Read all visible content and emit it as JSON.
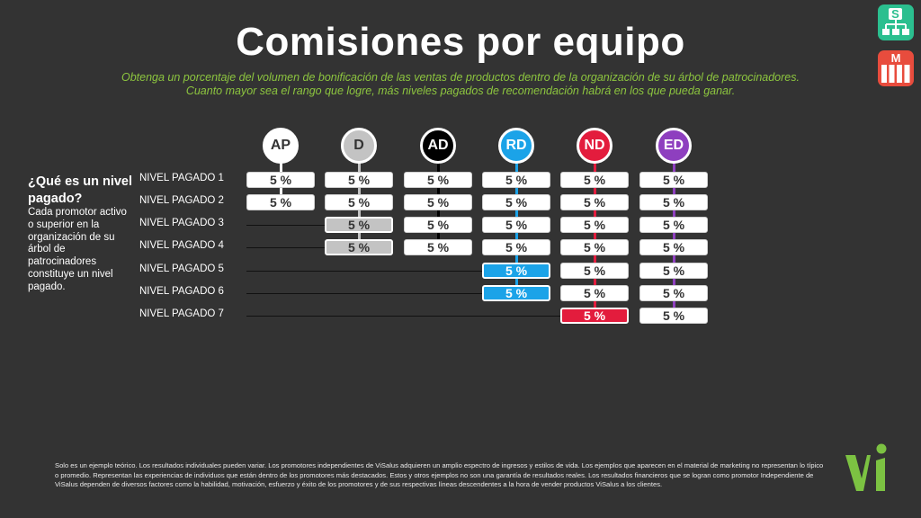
{
  "title": "Comisiones por equipo",
  "subtitle": [
    "Obtenga un porcentaje del volumen de bonificación de las ventas de productos dentro de la organización de su árbol de patrocinadores.",
    "Cuanto mayor sea el rango que logre, más niveles pagados de recomendación habrá en los que pueda ganar."
  ],
  "icons": {
    "s_label": "S",
    "m_label": "M"
  },
  "sidebar": {
    "heading": "¿Qué es un nivel pagado?",
    "text": "Cada promotor activo o superior en la organización de su árbol de patrocinadores constituye un nivel pagado."
  },
  "levels": [
    "NIVEL PAGADO 1",
    "NIVEL PAGADO 2",
    "NIVEL PAGADO 3",
    "NIVEL PAGADO 4",
    "NIVEL PAGADO 5",
    "NIVEL PAGADO 6",
    "NIVEL PAGADO 7"
  ],
  "ranks": [
    {
      "label": "AP",
      "circle": "#ffffff",
      "text": "#333333",
      "stem": "#ffffff",
      "cells": [
        {
          "v": "5 %",
          "s": "plain"
        },
        {
          "v": "5 %",
          "s": "plain"
        }
      ]
    },
    {
      "label": "D",
      "circle": "#c3c3c3",
      "text": "#333333",
      "stem": "#c3c3c3",
      "cells": [
        {
          "v": "5 %",
          "s": "plain"
        },
        {
          "v": "5 %",
          "s": "plain"
        },
        {
          "v": "5 %",
          "s": "grey"
        },
        {
          "v": "5 %",
          "s": "grey"
        }
      ]
    },
    {
      "label": "AD",
      "circle": "#000000",
      "text": "#ffffff",
      "stem": "#000000",
      "cells": [
        {
          "v": "5 %",
          "s": "plain"
        },
        {
          "v": "5 %",
          "s": "plain"
        },
        {
          "v": "5 %",
          "s": "plain"
        },
        {
          "v": "5 %",
          "s": "plain"
        }
      ]
    },
    {
      "label": "RD",
      "circle": "#1ba3e8",
      "text": "#ffffff",
      "stem": "#1ba3e8",
      "cells": [
        {
          "v": "5 %",
          "s": "plain"
        },
        {
          "v": "5 %",
          "s": "plain"
        },
        {
          "v": "5 %",
          "s": "plain"
        },
        {
          "v": "5 %",
          "s": "plain"
        },
        {
          "v": "5 %",
          "s": "blue"
        },
        {
          "v": "5 %",
          "s": "blue"
        }
      ]
    },
    {
      "label": "ND",
      "circle": "#e31c3d",
      "text": "#ffffff",
      "stem": "#e31c3d",
      "cells": [
        {
          "v": "5 %",
          "s": "plain"
        },
        {
          "v": "5 %",
          "s": "plain"
        },
        {
          "v": "5 %",
          "s": "plain"
        },
        {
          "v": "5 %",
          "s": "plain"
        },
        {
          "v": "5 %",
          "s": "plain"
        },
        {
          "v": "5 %",
          "s": "plain"
        },
        {
          "v": "5 %",
          "s": "red"
        }
      ]
    },
    {
      "label": "ED",
      "circle": "#8e3fbf",
      "text": "#ffffff",
      "stem": "#8e3fbf",
      "cells": [
        {
          "v": "5 %",
          "s": "plain"
        },
        {
          "v": "5 %",
          "s": "plain"
        },
        {
          "v": "5 %",
          "s": "plain"
        },
        {
          "v": "5 %",
          "s": "plain"
        },
        {
          "v": "5 %",
          "s": "plain"
        },
        {
          "v": "5 %",
          "s": "plain"
        },
        {
          "v": "5 %",
          "s": "plain"
        }
      ]
    }
  ],
  "disclaimer": "Solo es un ejemplo teórico. Los resultados individuales pueden variar.  Los promotores independientes de ViSalus adquieren un amplio espectro de ingresos y estilos de vida. Los ejemplos que aparecen en el material de marketing no representan lo típico o promedio. Representan las experiencias de individuos que están dentro de los promotores más destacados.  Estos y otros ejemplos no son una garantía de resultados reales. Los resultados financieros que se logran como promotor Independiente de ViSalus dependen de diversos factores como la habilidad, motivación, esfuerzo y éxito de los promotores y de sus respectivas líneas descendentes a la hora de vender productos ViSalus a los clientes.",
  "logo": {
    "name": "vi-logo-icon",
    "color": "#7cc242"
  }
}
